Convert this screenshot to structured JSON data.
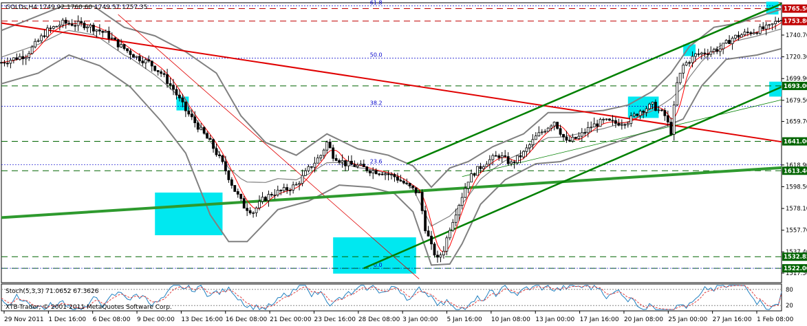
{
  "window": {
    "symbol_header": "GOLDs,H4  1749.92  1760.60  1749.57  1757.35",
    "broker_label": "XTB-Trader, © 2001-2011 MetaQuotes Software Corp."
  },
  "colors": {
    "background": "#ffffff",
    "candle": "#000000",
    "bollinger": "#808080",
    "moving_average": "#ff0000",
    "red_trendline": "#e00000",
    "green_trendline": "#2e9a2e",
    "channel": "#008000",
    "fibonacci": "#0000cc",
    "highlight": "#00e8f0",
    "hline_red": "#c00000",
    "hline_green": "#006400",
    "stoch_main": "#2080c0",
    "stoch_signal": "#e04040"
  },
  "chart_data": {
    "type": "candlestick",
    "title": "GOLDs,H4",
    "ohlc_header": {
      "open": 1749.92,
      "high": 1760.6,
      "low": 1749.57,
      "close": 1757.35
    },
    "xlabel": "",
    "ylabel": "",
    "ylim": [
      1508.5,
      1771.0
    ],
    "grid": false,
    "y_ticks": [
      1517.5,
      1537.4,
      1557.7,
      1578.1,
      1598.5,
      1618.9,
      1659.7,
      1679.5,
      1699.9,
      1720.3,
      1740.7
    ],
    "time_labels": [
      "29 Nov 2011",
      "1 Dec 16:00",
      "6 Dec 08:00",
      "9 Dec 00:00",
      "13 Dec 16:00",
      "16 Dec 08:00",
      "21 Dec 00:00",
      "23 Dec 16:00",
      "28 Dec 08:00",
      "3 Jan 00:00",
      "5 Jan 16:00",
      "10 Jan 08:00",
      "13 Jan 00:00",
      "17 Jan 16:00",
      "20 Jan 08:00",
      "25 Jan 00:00",
      "27 Jan 16:00",
      "1 Feb 08:00"
    ],
    "close_path": [
      [
        0,
        1715
      ],
      [
        8,
        1722
      ],
      [
        15,
        1745
      ],
      [
        20,
        1752
      ],
      [
        28,
        1750
      ],
      [
        34,
        1742
      ],
      [
        38,
        1732
      ],
      [
        44,
        1720
      ],
      [
        48,
        1715
      ],
      [
        52,
        1705
      ],
      [
        56,
        1690
      ],
      [
        60,
        1670
      ],
      [
        64,
        1655
      ],
      [
        68,
        1640
      ],
      [
        72,
        1620
      ],
      [
        76,
        1595
      ],
      [
        79,
        1580
      ],
      [
        82,
        1575
      ],
      [
        85,
        1586
      ],
      [
        88,
        1592
      ],
      [
        92,
        1595
      ],
      [
        96,
        1600
      ],
      [
        100,
        1615
      ],
      [
        104,
        1628
      ],
      [
        106,
        1640
      ],
      [
        108,
        1628
      ],
      [
        112,
        1620
      ],
      [
        116,
        1618
      ],
      [
        120,
        1614
      ],
      [
        124,
        1612
      ],
      [
        128,
        1608
      ],
      [
        132,
        1600
      ],
      [
        136,
        1592
      ],
      [
        138,
        1560
      ],
      [
        140,
        1542
      ],
      [
        142,
        1530
      ],
      [
        144,
        1540
      ],
      [
        146,
        1560
      ],
      [
        148,
        1575
      ],
      [
        150,
        1590
      ],
      [
        152,
        1605
      ],
      [
        154,
        1612
      ],
      [
        158,
        1622
      ],
      [
        162,
        1628
      ],
      [
        166,
        1620
      ],
      [
        170,
        1630
      ],
      [
        174,
        1645
      ],
      [
        178,
        1655
      ],
      [
        180,
        1660
      ],
      [
        182,
        1650
      ],
      [
        184,
        1640
      ],
      [
        188,
        1645
      ],
      [
        192,
        1655
      ],
      [
        196,
        1660
      ],
      [
        200,
        1658
      ],
      [
        204,
        1660
      ],
      [
        208,
        1670
      ],
      [
        212,
        1675
      ],
      [
        216,
        1665
      ],
      [
        218,
        1650
      ],
      [
        220,
        1695
      ],
      [
        222,
        1712
      ],
      [
        226,
        1722
      ],
      [
        230,
        1725
      ],
      [
        234,
        1728
      ],
      [
        238,
        1738
      ],
      [
        242,
        1742
      ],
      [
        246,
        1745
      ],
      [
        250,
        1748
      ],
      [
        254,
        1757
      ]
    ],
    "bollinger_upper": [
      [
        0,
        1745
      ],
      [
        20,
        1768
      ],
      [
        30,
        1768
      ],
      [
        40,
        1748
      ],
      [
        50,
        1740
      ],
      [
        60,
        1725
      ],
      [
        70,
        1705
      ],
      [
        78,
        1665
      ],
      [
        86,
        1640
      ],
      [
        96,
        1628
      ],
      [
        106,
        1648
      ],
      [
        116,
        1634
      ],
      [
        126,
        1628
      ],
      [
        134,
        1618
      ],
      [
        140,
        1598
      ],
      [
        146,
        1616
      ],
      [
        152,
        1622
      ],
      [
        160,
        1636
      ],
      [
        170,
        1648
      ],
      [
        178,
        1668
      ],
      [
        186,
        1668
      ],
      [
        196,
        1670
      ],
      [
        204,
        1675
      ],
      [
        212,
        1688
      ],
      [
        218,
        1705
      ],
      [
        224,
        1730
      ],
      [
        232,
        1748
      ],
      [
        240,
        1752
      ],
      [
        254,
        1765
      ]
    ],
    "bollinger_lower": [
      [
        0,
        1695
      ],
      [
        12,
        1705
      ],
      [
        22,
        1722
      ],
      [
        32,
        1712
      ],
      [
        42,
        1692
      ],
      [
        52,
        1660
      ],
      [
        60,
        1630
      ],
      [
        68,
        1572
      ],
      [
        74,
        1547
      ],
      [
        80,
        1547
      ],
      [
        90,
        1577
      ],
      [
        100,
        1585
      ],
      [
        110,
        1600
      ],
      [
        120,
        1598
      ],
      [
        128,
        1592
      ],
      [
        134,
        1575
      ],
      [
        140,
        1525
      ],
      [
        146,
        1526
      ],
      [
        150,
        1545
      ],
      [
        156,
        1582
      ],
      [
        164,
        1605
      ],
      [
        174,
        1620
      ],
      [
        182,
        1622
      ],
      [
        192,
        1632
      ],
      [
        200,
        1640
      ],
      [
        208,
        1648
      ],
      [
        216,
        1655
      ],
      [
        222,
        1662
      ],
      [
        228,
        1693
      ],
      [
        236,
        1718
      ],
      [
        246,
        1722
      ],
      [
        254,
        1728
      ]
    ],
    "red_trendline": {
      "x": [
        0,
        254
      ],
      "y": [
        1752.0,
        1640.6
      ]
    },
    "thin_red_trendline": {
      "x": [
        38,
        136
      ],
      "y": [
        1760.0,
        1512.0
      ]
    },
    "green_trendline_thick": {
      "x": [
        0,
        254
      ],
      "y": [
        1569.5,
        1616.3
      ]
    },
    "channel_upper": {
      "x": [
        132,
        254
      ],
      "y": [
        1620.0,
        1770.0
      ]
    },
    "channel_lower": {
      "x": [
        118,
        254
      ],
      "y": [
        1522.0,
        1692.0
      ]
    },
    "channel_mid": {
      "x": [
        150,
        254
      ],
      "y": [
        1608.0,
        1680.0
      ]
    },
    "horizontal_lines": [
      {
        "price": 1765.5,
        "label": "1765.50",
        "color": "#c00000"
      },
      {
        "price": 1753.8,
        "label": "1753.80",
        "color": "#c00000"
      },
      {
        "price": 1693.0,
        "label": "1693.00",
        "color": "#006400"
      },
      {
        "price": 1641.0,
        "label": "1641.00",
        "color": "#006400"
      },
      {
        "price": 1613.46,
        "label": "1613.46",
        "color": "#006400"
      },
      {
        "price": 1532.85,
        "label": "1532.85",
        "color": "#006400"
      },
      {
        "price": 1522.0,
        "label": "1522.00",
        "color": "#006400"
      }
    ],
    "fibonacci": {
      "levels": [
        {
          "label": "61.8",
          "price": 1768.0
        },
        {
          "label": "50.0",
          "price": 1719.0
        },
        {
          "label": "38.2",
          "price": 1674.0
        },
        {
          "label": "23.6",
          "price": 1619.0
        },
        {
          "label": "0.0",
          "price": 1522.0
        }
      ]
    },
    "highlight_zones": [
      {
        "x0": 50,
        "x1": 72,
        "y0": 1553,
        "y1": 1593
      },
      {
        "x0": 108,
        "x1": 135,
        "y0": 1517,
        "y1": 1551
      },
      {
        "x0": 57,
        "x1": 61,
        "y0": 1670,
        "y1": 1683
      },
      {
        "x0": 204,
        "x1": 214,
        "y0": 1663,
        "y1": 1683
      },
      {
        "x0": 222,
        "x1": 226,
        "y0": 1721,
        "y1": 1732
      },
      {
        "x0": 249,
        "x1": 253,
        "y0": 1760,
        "y1": 1772
      },
      {
        "x0": 250,
        "x1": 254,
        "y0": 1683,
        "y1": 1697
      }
    ],
    "stochastic": {
      "label": "Stoch(5,3,3) 71.0652 67.3626",
      "main": 71.0652,
      "signal": 67.3626,
      "ylim": [
        0,
        100
      ],
      "y_ticks": [
        80,
        20
      ]
    }
  }
}
